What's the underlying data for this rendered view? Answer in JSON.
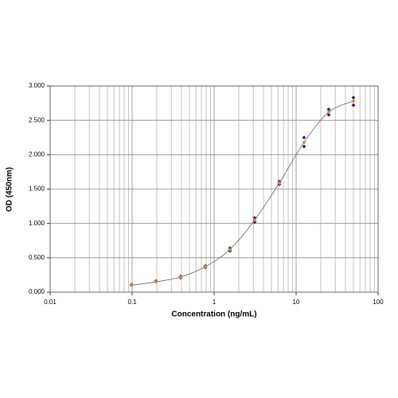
{
  "chart_data": {
    "type": "scatter",
    "x_label": "Concentration (ng/mL)",
    "y_label": "OD (450nm)",
    "x": [
      0.098,
      0.195,
      0.39,
      0.78,
      1.56,
      3.125,
      6.25,
      12.5,
      25,
      50
    ],
    "series": [
      {
        "color": "#e08a2c",
        "values": [
          0.1,
          0.15,
          0.22,
          0.37,
          0.62,
          1.05,
          1.59,
          2.18,
          2.62,
          2.78
        ],
        "fit_line": true
      },
      {
        "color": "#1a1a8c",
        "values": [
          0.1,
          0.15,
          0.21,
          0.36,
          0.6,
          1.02,
          1.57,
          2.12,
          2.58,
          2.72
        ]
      },
      {
        "color": "#1a1a8c",
        "values": [
          0.11,
          0.16,
          0.23,
          0.38,
          0.64,
          1.08,
          1.61,
          2.25,
          2.66,
          2.83
        ]
      }
    ],
    "fit_line_color": "#666666",
    "xlim": [
      0.01,
      100
    ],
    "xticks": [
      0.01,
      0.1,
      1,
      10,
      100
    ],
    "xscale": "log",
    "ylim": [
      0,
      3
    ],
    "yticks": [
      {
        "value": 0,
        "label": "0.000"
      },
      {
        "value": 0.5,
        "label": "0.500"
      },
      {
        "value": 1,
        "label": "1.000"
      },
      {
        "value": 1.5,
        "label": "1.500"
      },
      {
        "value": 2,
        "label": "2.000"
      },
      {
        "value": 2.5,
        "label": "2.500"
      },
      {
        "value": 3,
        "label": "3.000"
      }
    ],
    "grid": true
  }
}
